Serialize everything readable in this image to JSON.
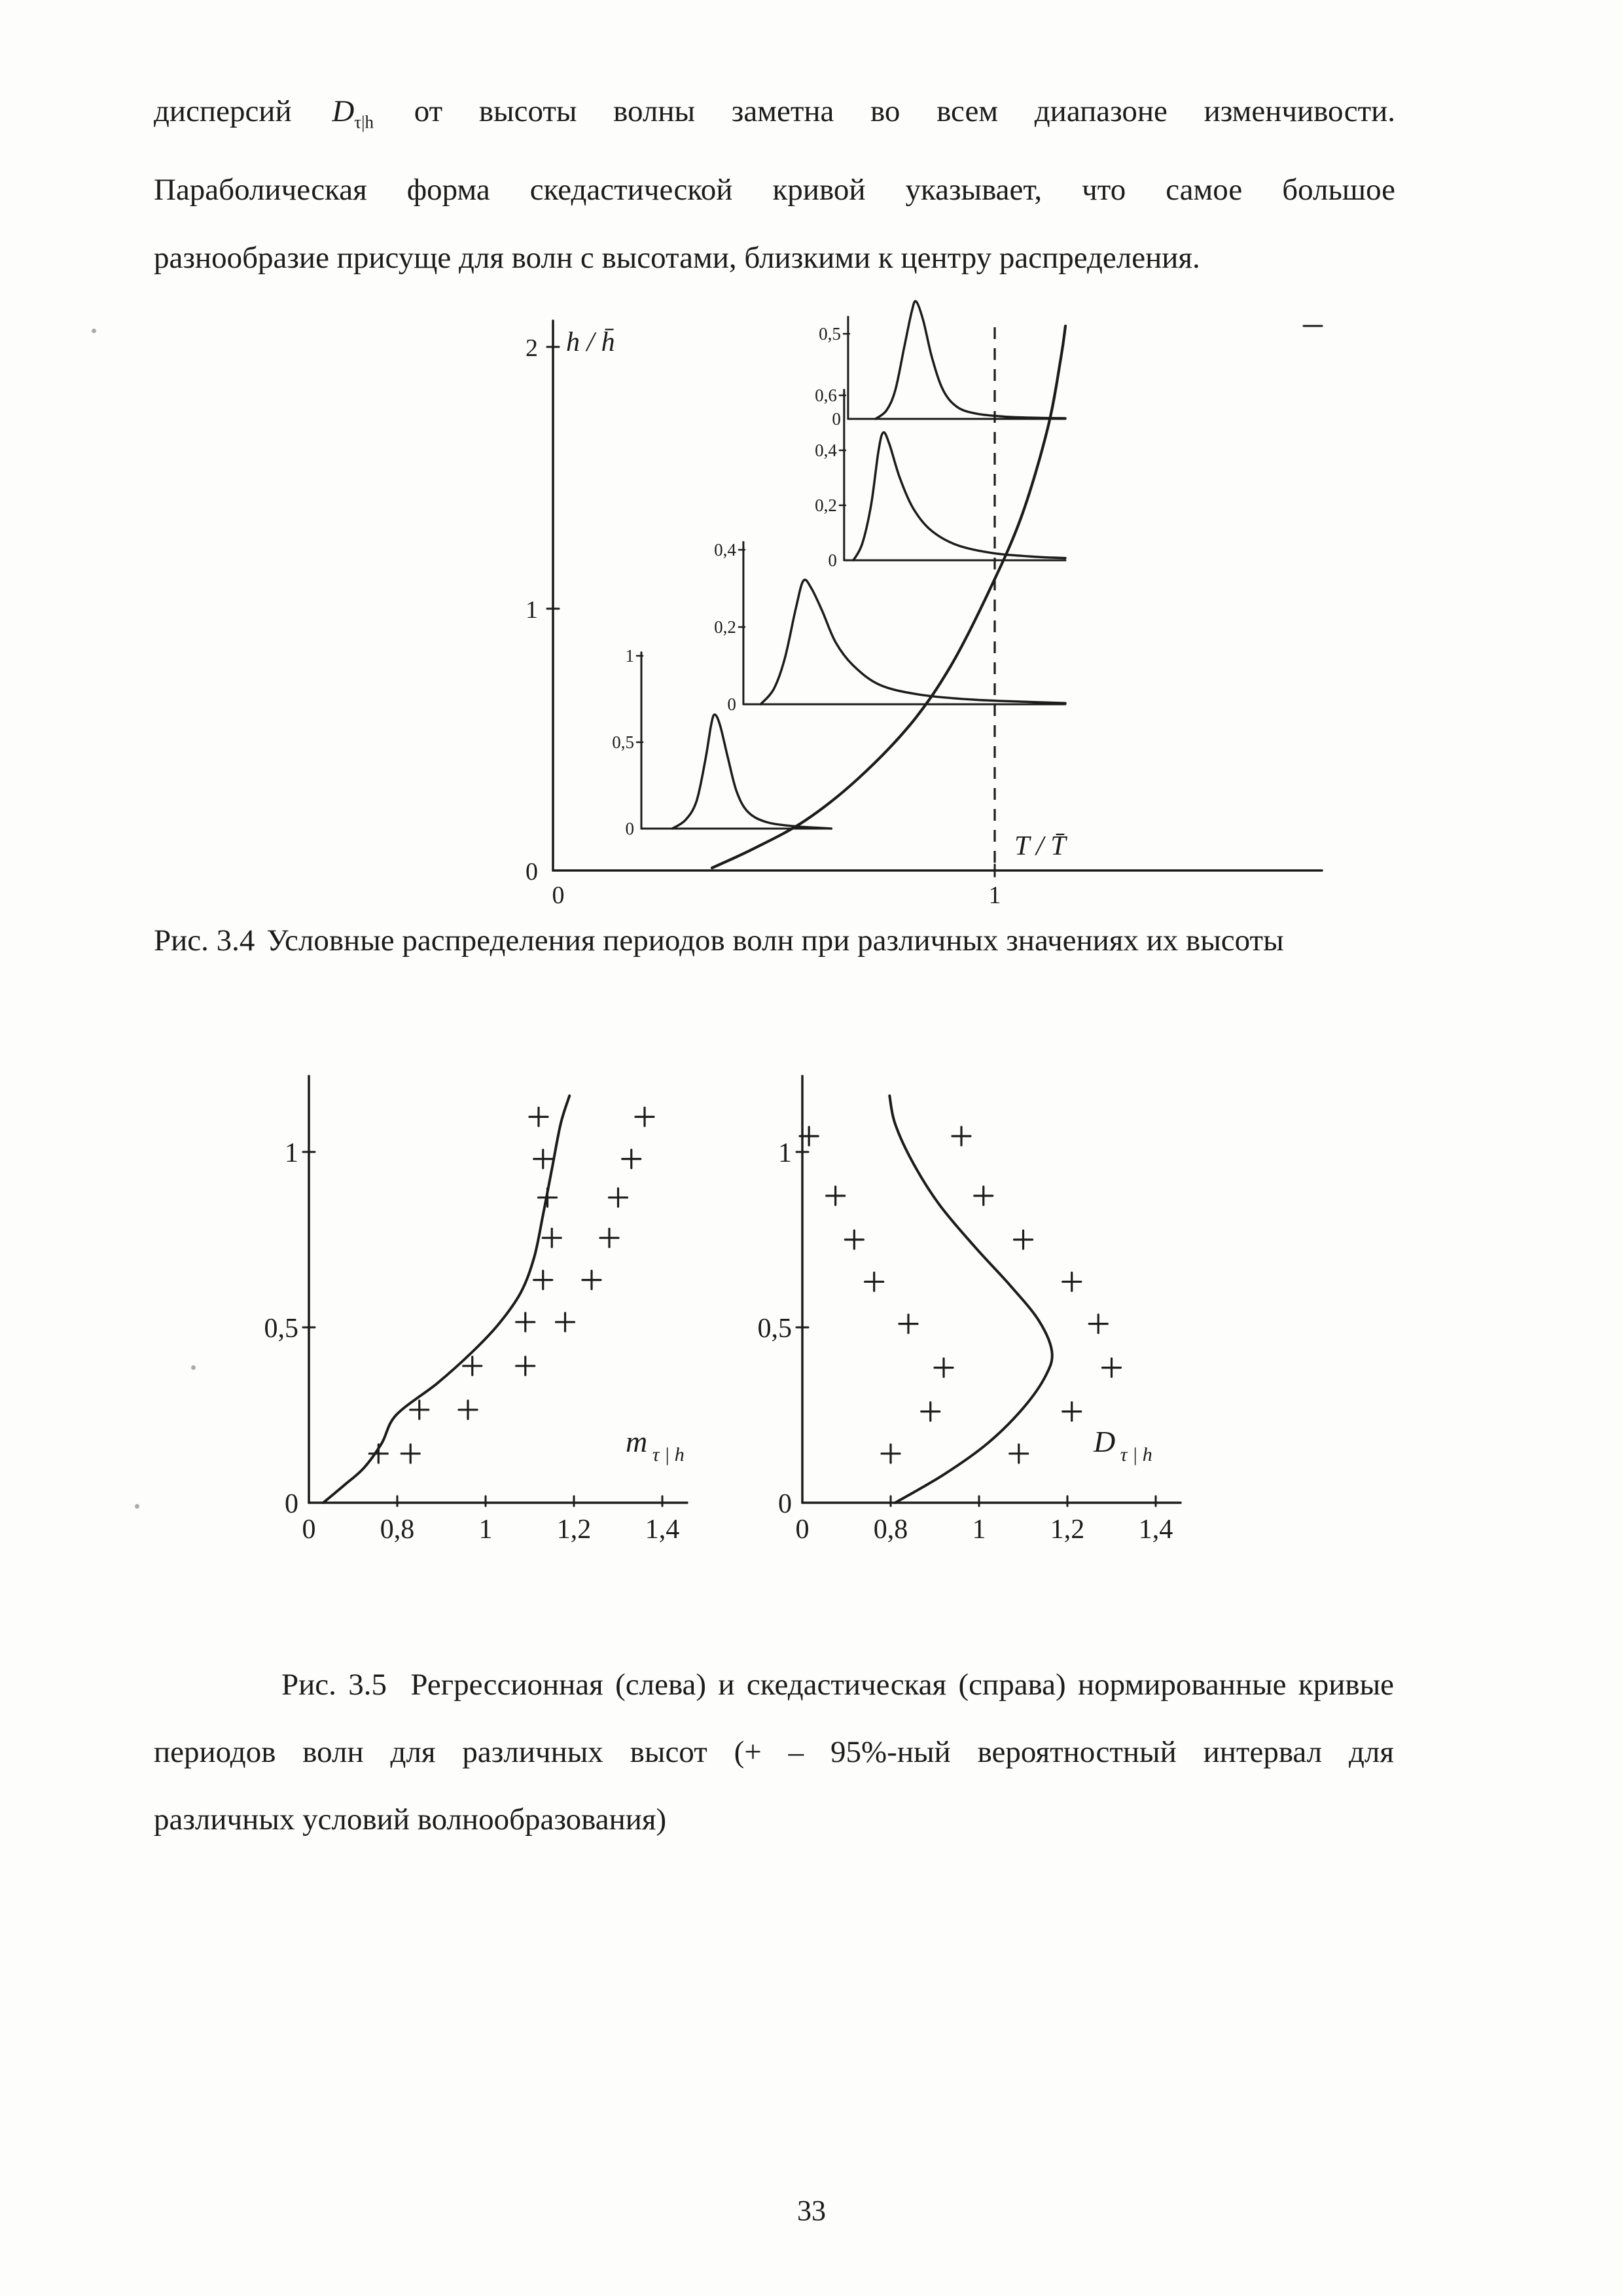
{
  "page": {
    "number": "33"
  },
  "paragraph": {
    "l1_pre": "дисперсий",
    "d_symbol": "D",
    "d_subscript": "τ|h",
    "l1_post": "от высоты волны заметна во всем диапазоне изменчивости.",
    "l2": "Параболическая форма скедастической кривой указывает, что самое большое",
    "l3": "разнообразие присуще для волн с высотами, близкими к центру распределения."
  },
  "fig34": {
    "caption_label": "Рис. 3.4",
    "caption_text": "Условные распределения периодов волн при различных значениях их высоты"
  },
  "fig35": {
    "caption_label": "Рис. 3.5",
    "caption_line1": "Регрессионная (слева) и скедастическая (справа) нормированные кривые",
    "caption_line2": "периодов волн для различных высот (+ – 95%-ный вероятностный интервал для",
    "caption_line3": "различных условий волнообразования)"
  },
  "ink_color": "#1c1c1c",
  "chart_data": [
    {
      "id": "fig34",
      "type": "line",
      "title": "Условные распределения периодов волн при различных значениях их высоты",
      "xlabel": "T / T̄",
      "ylabel": "h / h̄",
      "xlim": [
        0,
        1.74
      ],
      "ylim": [
        0,
        2.1
      ],
      "x_ticks": [
        {
          "v": 0,
          "label": "0"
        },
        {
          "v": 1,
          "label": "1"
        }
      ],
      "y_ticks": [
        {
          "v": 0,
          "label": "0"
        },
        {
          "v": 1,
          "label": "1"
        },
        {
          "v": 2,
          "label": "2"
        }
      ],
      "dashed_vline_x": 1,
      "regression_curve": [
        [
          0.36,
          0.01
        ],
        [
          0.45,
          0.08
        ],
        [
          0.57,
          0.19
        ],
        [
          0.69,
          0.35
        ],
        [
          0.81,
          0.56
        ],
        [
          0.9,
          0.78
        ],
        [
          0.985,
          1.06
        ],
        [
          1.06,
          1.35
        ],
        [
          1.12,
          1.69
        ],
        [
          1.15,
          1.96
        ],
        [
          1.16,
          2.08
        ]
      ],
      "insets": [
        {
          "name": "conditional-pdf-lowest-height",
          "axis_x": 0.2,
          "base_h": 0.16,
          "unit_h": 0.66,
          "axis_top_d": 1.02,
          "baseline_end_x": 0.63,
          "ticks": [
            {
              "v": 0,
              "label": "0"
            },
            {
              "v": 0.5,
              "label": "0,5"
            },
            {
              "v": 1,
              "label": "1"
            }
          ],
          "pdf": [
            [
              0.27,
              0
            ],
            [
              0.3,
              0.05
            ],
            [
              0.325,
              0.16
            ],
            [
              0.345,
              0.4
            ],
            [
              0.358,
              0.6
            ],
            [
              0.366,
              0.66
            ],
            [
              0.378,
              0.6
            ],
            [
              0.395,
              0.42
            ],
            [
              0.415,
              0.22
            ],
            [
              0.44,
              0.1
            ],
            [
              0.48,
              0.04
            ],
            [
              0.54,
              0.015
            ],
            [
              0.6,
              0.005
            ],
            [
              0.63,
              0
            ]
          ]
        },
        {
          "name": "conditional-pdf-second-height",
          "axis_x": 0.431,
          "base_h": 0.635,
          "unit_h": 1.475,
          "axis_top_d": 0.42,
          "baseline_end_x": 1.16,
          "ticks": [
            {
              "v": 0,
              "label": "0"
            },
            {
              "v": 0.2,
              "label": "0,2"
            },
            {
              "v": 0.4,
              "label": "0,4"
            }
          ],
          "pdf": [
            [
              0.47,
              0
            ],
            [
              0.5,
              0.04
            ],
            [
              0.525,
              0.12
            ],
            [
              0.55,
              0.25
            ],
            [
              0.567,
              0.32
            ],
            [
              0.585,
              0.3
            ],
            [
              0.61,
              0.24
            ],
            [
              0.64,
              0.16
            ],
            [
              0.68,
              0.1
            ],
            [
              0.74,
              0.05
            ],
            [
              0.83,
              0.025
            ],
            [
              0.95,
              0.012
            ],
            [
              1.08,
              0.006
            ],
            [
              1.16,
              0.003
            ]
          ]
        },
        {
          "name": "conditional-pdf-third-height",
          "axis_x": 0.659,
          "base_h": 1.185,
          "unit_h": 1.05,
          "axis_top_d": 0.62,
          "baseline_end_x": 1.16,
          "ticks": [
            {
              "v": 0,
              "label": "0"
            },
            {
              "v": 0.2,
              "label": "0,2"
            },
            {
              "v": 0.4,
              "label": "0,4"
            },
            {
              "v": 0.6,
              "label": "0,6"
            }
          ],
          "pdf": [
            [
              0.68,
              0
            ],
            [
              0.7,
              0.06
            ],
            [
              0.72,
              0.2
            ],
            [
              0.737,
              0.4
            ],
            [
              0.748,
              0.465
            ],
            [
              0.762,
              0.42
            ],
            [
              0.785,
              0.3
            ],
            [
              0.815,
              0.19
            ],
            [
              0.855,
              0.11
            ],
            [
              0.915,
              0.055
            ],
            [
              1.0,
              0.025
            ],
            [
              1.1,
              0.012
            ],
            [
              1.16,
              0.008
            ]
          ]
        },
        {
          "name": "conditional-pdf-highest-height",
          "axis_x": 0.668,
          "base_h": 1.725,
          "unit_h": 0.65,
          "axis_top_d": 0.6,
          "baseline_end_x": 1.16,
          "ticks": [
            {
              "v": 0,
              "label": "0"
            },
            {
              "v": 0.5,
              "label": "0,5"
            }
          ],
          "pdf": [
            [
              0.73,
              0
            ],
            [
              0.755,
              0.05
            ],
            [
              0.775,
              0.17
            ],
            [
              0.795,
              0.42
            ],
            [
              0.812,
              0.63
            ],
            [
              0.822,
              0.69
            ],
            [
              0.838,
              0.58
            ],
            [
              0.858,
              0.36
            ],
            [
              0.883,
              0.17
            ],
            [
              0.915,
              0.07
            ],
            [
              0.96,
              0.03
            ],
            [
              1.03,
              0.012
            ],
            [
              1.1,
              0.006
            ],
            [
              1.16,
              0.004
            ]
          ]
        }
      ]
    },
    {
      "id": "fig35-left",
      "type": "line",
      "name": "регрессионная кривая",
      "label_main": "m",
      "label_sub": "τ | h",
      "xlim": [
        0,
        1.47
      ],
      "ylim": [
        0,
        1.22
      ],
      "x_ticks": [
        {
          "v": 0,
          "label": "0"
        },
        {
          "v": 0.8,
          "label": "0,8"
        },
        {
          "v": 1,
          "label": "1"
        },
        {
          "v": 1.2,
          "label": "1,2"
        },
        {
          "v": 1.4,
          "label": "1,4"
        }
      ],
      "y_ticks": [
        {
          "v": 0,
          "label": "0"
        },
        {
          "v": 0.5,
          "label": "0,5"
        },
        {
          "v": 1,
          "label": "1"
        }
      ],
      "curve": [
        [
          0.13,
          0.0
        ],
        [
          0.32,
          0.05
        ],
        [
          0.5,
          0.1
        ],
        [
          0.66,
          0.17
        ],
        [
          0.79,
          0.25
        ],
        [
          0.89,
          0.34
        ],
        [
          0.97,
          0.43
        ],
        [
          1.03,
          0.51
        ],
        [
          1.08,
          0.6
        ],
        [
          1.11,
          0.7
        ],
        [
          1.13,
          0.82
        ],
        [
          1.15,
          0.95
        ],
        [
          1.17,
          1.08
        ],
        [
          1.19,
          1.16
        ]
      ],
      "plus_markers": [
        {
          "y": 1.1,
          "xl": 1.12,
          "xr": 1.36
        },
        {
          "y": 0.98,
          "xl": 1.13,
          "xr": 1.33
        },
        {
          "y": 0.87,
          "xl": 1.14,
          "xr": 1.3
        },
        {
          "y": 0.755,
          "xl": 1.15,
          "xr": 1.28
        },
        {
          "y": 0.635,
          "xl": 1.13,
          "xr": 1.24
        },
        {
          "y": 0.515,
          "xl": 1.09,
          "xr": 1.18
        },
        {
          "y": 0.39,
          "xl": 0.97,
          "xr": 1.09
        },
        {
          "y": 0.265,
          "xl": 0.85,
          "xr": 0.96
        },
        {
          "y": 0.14,
          "xl": 0.63,
          "xr": 0.83
        }
      ]
    },
    {
      "id": "fig35-right",
      "type": "line",
      "name": "скедастическая кривая",
      "label_main": "D",
      "label_sub": "τ | h",
      "xlim": [
        0,
        1.47
      ],
      "ylim": [
        0,
        1.22
      ],
      "x_ticks": [
        {
          "v": 0,
          "label": "0"
        },
        {
          "v": 0.8,
          "label": "0,8"
        },
        {
          "v": 1,
          "label": "1"
        },
        {
          "v": 1.2,
          "label": "1,2"
        },
        {
          "v": 1.4,
          "label": "1,4"
        }
      ],
      "y_ticks": [
        {
          "v": 0,
          "label": "0"
        },
        {
          "v": 0.5,
          "label": "0,5"
        },
        {
          "v": 1,
          "label": "1"
        }
      ],
      "curve": [
        [
          0.81,
          0.0
        ],
        [
          0.92,
          0.08
        ],
        [
          1.02,
          0.17
        ],
        [
          1.1,
          0.27
        ],
        [
          1.15,
          0.36
        ],
        [
          1.165,
          0.43
        ],
        [
          1.135,
          0.52
        ],
        [
          1.07,
          0.62
        ],
        [
          0.99,
          0.73
        ],
        [
          0.91,
          0.85
        ],
        [
          0.85,
          0.97
        ],
        [
          0.81,
          1.08
        ],
        [
          0.79,
          1.16
        ]
      ],
      "plus_markers": [
        {
          "y": 1.045,
          "xl": 0.06,
          "xr": 0.96
        },
        {
          "y": 0.875,
          "xl": 0.3,
          "xr": 1.01
        },
        {
          "y": 0.75,
          "xl": 0.47,
          "xr": 1.1
        },
        {
          "y": 0.63,
          "xl": 0.65,
          "xr": 1.21
        },
        {
          "y": 0.51,
          "xl": 0.84,
          "xr": 1.27
        },
        {
          "y": 0.385,
          "xl": 0.92,
          "xr": 1.3
        },
        {
          "y": 0.26,
          "xl": 0.89,
          "xr": 1.21
        },
        {
          "y": 0.14,
          "xl": 0.8,
          "xr": 1.09
        }
      ]
    }
  ]
}
